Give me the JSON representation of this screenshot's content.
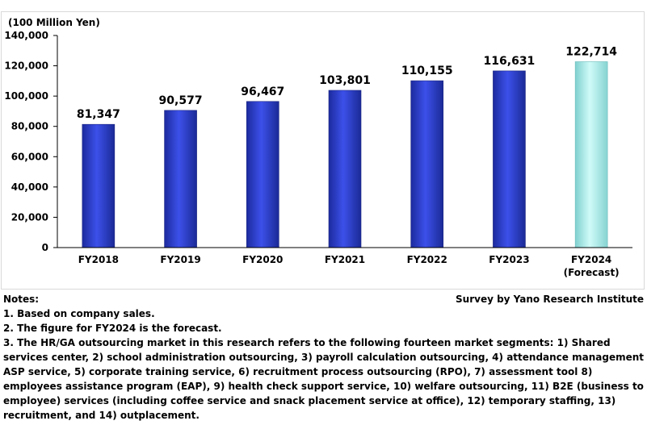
{
  "chart_data": {
    "type": "bar",
    "unit_label": "(100 Million Yen)",
    "categories": [
      "FY2018",
      "FY2019",
      "FY2020",
      "FY2021",
      "FY2022",
      "FY2023",
      "FY2024"
    ],
    "category_sublabels": [
      "",
      "",
      "",
      "",
      "",
      "",
      "(Forecast)"
    ],
    "values": [
      81347,
      90577,
      96467,
      103801,
      110155,
      116631,
      122714
    ],
    "value_labels": [
      "81,347",
      "90,577",
      "96,467",
      "103,801",
      "110,155",
      "116,631",
      "122,714"
    ],
    "forecast": [
      false,
      false,
      false,
      false,
      false,
      false,
      true
    ],
    "ylim": [
      0,
      140000
    ],
    "yticks": [
      0,
      20000,
      40000,
      60000,
      80000,
      100000,
      120000,
      140000
    ],
    "ytick_labels": [
      "0",
      "20,000",
      "40,000",
      "60,000",
      "80,000",
      "100,000",
      "120,000",
      "140,000"
    ],
    "colors": {
      "actual": "#2b3ccf",
      "forecast": "#a9ecea"
    },
    "grid": false,
    "legend": "none"
  },
  "notes": {
    "heading": "Notes:",
    "source": "Survey by Yano Research Institute",
    "lines": [
      "1. Based on company sales.",
      "2. The figure for FY2024 is the forecast.",
      "3. The HR/GA outsourcing market in this research refers to the following fourteen market segments: 1) Shared services center, 2) school administration outsourcing, 3) payroll calculation outsourcing, 4) attendance management ASP service, 5) corporate training service, 6) recruitment process outsourcing (RPO), 7) assessment tool 8) employees assistance program (EAP), 9) health check support service, 10) welfare outsourcing, 11) B2E (business to employee) services (including coffee service and snack placement service at office), 12) temporary staffing, 13) recruitment, and 14) outplacement."
    ]
  }
}
